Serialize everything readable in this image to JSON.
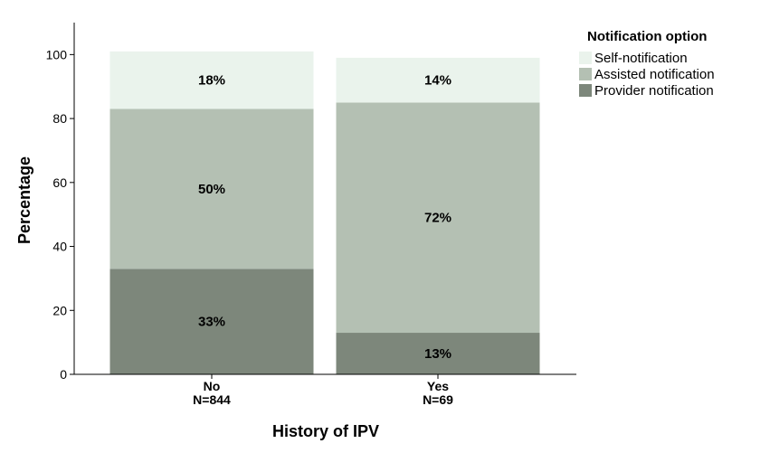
{
  "chart_data": {
    "type": "bar",
    "stacked": true,
    "categories": [
      "No",
      "Yes"
    ],
    "category_sublabels": [
      "N=844",
      "N=69"
    ],
    "series": [
      {
        "name": "Provider notification",
        "values": [
          33,
          13
        ],
        "labels": [
          "33%",
          "13%"
        ],
        "color": "#7d877b"
      },
      {
        "name": "Assisted notification",
        "values": [
          50,
          72
        ],
        "labels": [
          "50%",
          "72%"
        ],
        "color": "#b4c0b3"
      },
      {
        "name": "Self-notification",
        "values": [
          18,
          14
        ],
        "labels": [
          "18%",
          "14%"
        ],
        "color": "#eaf3ec"
      }
    ],
    "xlabel": "History of IPV",
    "ylabel": "Percentage",
    "ylim": [
      0,
      110
    ],
    "yticks": [
      0,
      20,
      40,
      60,
      80,
      100
    ],
    "grid": false,
    "legend": {
      "title": "Notification option",
      "position": "top-right",
      "order": [
        "Self-notification",
        "Assisted notification",
        "Provider notification"
      ]
    }
  }
}
